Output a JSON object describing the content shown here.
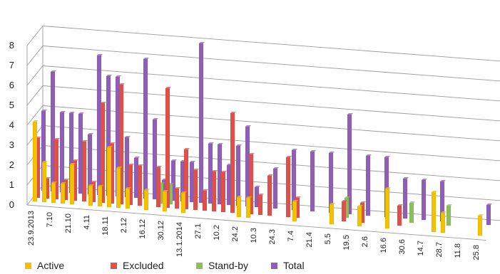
{
  "chart_data": {
    "type": "bar",
    "title": "",
    "xlabel": "",
    "ylabel": "",
    "ylim": [
      0,
      8
    ],
    "y_ticks": [
      "0",
      "1",
      "2",
      "3",
      "4",
      "5",
      "6",
      "7",
      "8"
    ],
    "grid": true,
    "style": "3d-depth",
    "legend_position": "bottom",
    "categories": [
      "23.9.2013",
      "",
      "7.10",
      "",
      "21.10",
      "",
      "4.11",
      "",
      "18.11",
      "",
      "2.12",
      "",
      "16.12",
      "",
      "30.12",
      "",
      "13.1.2014",
      "",
      "27.1",
      "",
      "10.2",
      "",
      "24.2",
      "",
      "10.3",
      "",
      "24.3",
      "",
      "7.4",
      "",
      "21.4",
      "",
      "5.5",
      "",
      "19.5",
      "",
      "2.6",
      "",
      "16.6",
      "",
      "30.6",
      "",
      "14.7",
      "",
      "28.7",
      "",
      "11.8",
      "",
      "25.8"
    ],
    "series": [
      {
        "name": "Active",
        "color": "#F2C200",
        "values": [
          4,
          2,
          1,
          1,
          2,
          0,
          1,
          1,
          3,
          2,
          1,
          0,
          1,
          0,
          1,
          0,
          1,
          0,
          0,
          0,
          0,
          0,
          1,
          1,
          0,
          0,
          0,
          0,
          1,
          0,
          0,
          0,
          1,
          0,
          0,
          1,
          0,
          0,
          2,
          0,
          0,
          0,
          0,
          2,
          1,
          0,
          0,
          0,
          1
        ]
      },
      {
        "name": "Excluded",
        "color": "#E0504A",
        "values": [
          3,
          1,
          3,
          1,
          2,
          3,
          1,
          5,
          3,
          6,
          2,
          2,
          0,
          2,
          6,
          1,
          3,
          2,
          1,
          2,
          2,
          5,
          0,
          3,
          1,
          2,
          0,
          3,
          1,
          0,
          0,
          0,
          0,
          1,
          0,
          1,
          0,
          0,
          0,
          1,
          0,
          0,
          0,
          0,
          0,
          0,
          0,
          0,
          0
        ]
      },
      {
        "name": "Stand-by",
        "color": "#8DBE5A",
        "values": [
          0,
          0,
          0,
          0,
          0,
          0,
          0,
          0,
          0,
          0,
          0,
          0,
          0,
          1,
          1,
          0,
          0,
          0,
          0,
          0,
          0,
          0,
          0,
          0,
          0,
          0,
          0,
          0,
          0,
          0,
          0,
          0,
          0,
          1,
          0,
          0,
          0,
          0,
          0,
          0,
          1,
          0,
          0,
          0,
          1,
          0,
          0,
          0,
          0
        ]
      },
      {
        "name": "Total",
        "color": "#8E5FB5",
        "values": [
          4,
          6,
          4,
          4,
          4,
          3,
          7,
          6,
          6,
          3,
          2,
          7,
          4,
          1,
          2,
          2,
          2,
          8,
          3,
          3,
          2,
          3,
          4,
          1,
          0,
          2,
          0,
          3,
          0,
          3,
          0,
          3,
          0,
          5,
          0,
          3,
          0,
          3,
          0,
          2,
          0,
          2,
          0,
          2,
          0,
          0,
          0,
          0,
          1
        ]
      }
    ]
  }
}
